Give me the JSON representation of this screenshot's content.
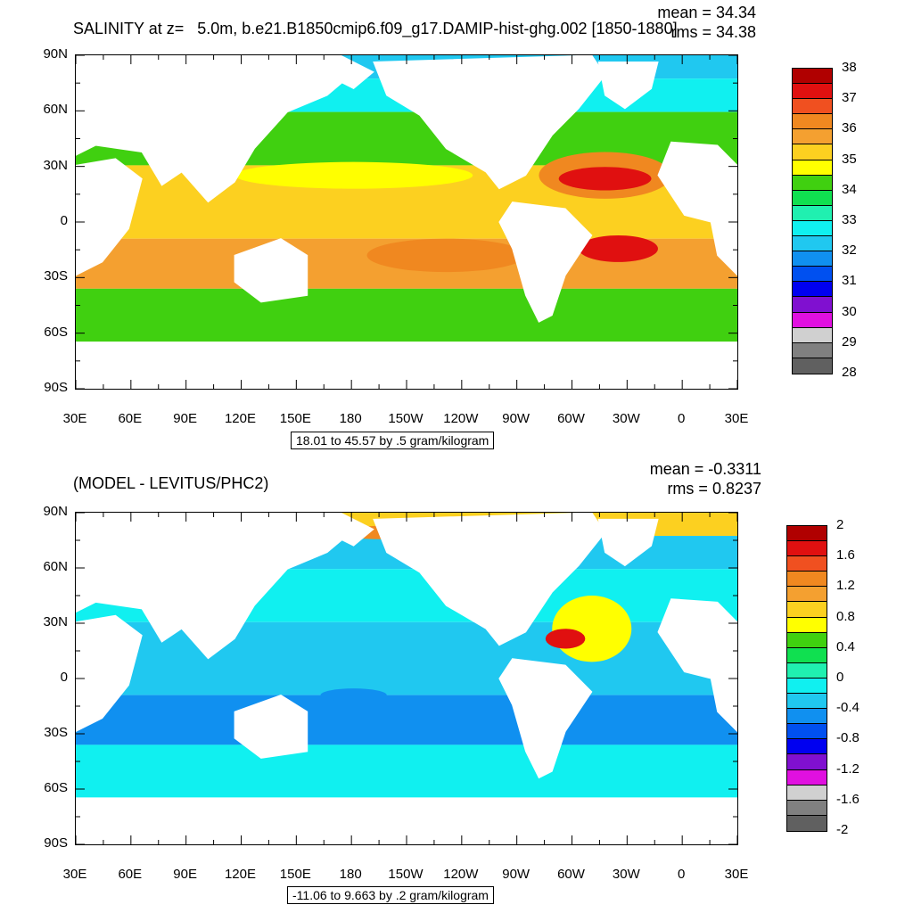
{
  "colors": {
    "white": "#ffffff",
    "land": "#ffffff"
  },
  "panels": [
    {
      "title": "SALINITY at z=   5.0m, b.e21.B1850cmip6.f09_g17.DAMIP-hist-ghg.002 [1850-1880]",
      "mean_text": "mean = 34.34",
      "rms_text": "rms = 34.38",
      "info_text": "18.01 to 45.57 by .5 gram/kilogram",
      "colorbar": {
        "labels": [
          "38",
          "37",
          "36",
          "35",
          "34",
          "33",
          "32",
          "31",
          "30",
          "29",
          "28"
        ],
        "colors": [
          "#b00000",
          "#e01010",
          "#f05020",
          "#f08820",
          "#f4a030",
          "#fcd020",
          "#ffff00",
          "#40d010",
          "#10e050",
          "#20f0b0",
          "#10f0f0",
          "#20c8f0",
          "#1090f0",
          "#0050f0",
          "#0000f0",
          "#8010d0",
          "#e010e0",
          "#d0d0d0",
          "#808080",
          "#606060"
        ]
      },
      "map_fields": [
        {
          "name": "band-arctic",
          "color": "#20c8f0"
        },
        {
          "name": "band-north",
          "color": "#10f0f0"
        },
        {
          "name": "band-npac",
          "color": "#40d010"
        },
        {
          "name": "band-trop",
          "color": "#fcd020"
        },
        {
          "name": "band-south",
          "color": "#f4a030"
        },
        {
          "name": "band-so",
          "color": "#40d010"
        }
      ]
    },
    {
      "title": "(MODEL - LEVITUS/PHC2)",
      "mean_text": "mean = -0.3311",
      "rms_text": "rms = 0.8237",
      "info_text": "-11.06 to 9.663 by .2 gram/kilogram",
      "colorbar": {
        "labels": [
          "2",
          "1.6",
          "1.2",
          "0.8",
          "0.4",
          "0",
          "-0.4",
          "-0.8",
          "-1.2",
          "-1.6",
          "-2"
        ],
        "colors": [
          "#b00000",
          "#e01010",
          "#f05020",
          "#f08820",
          "#f4a030",
          "#fcd020",
          "#ffff00",
          "#40d010",
          "#10e050",
          "#20f0b0",
          "#10f0f0",
          "#20c8f0",
          "#1090f0",
          "#0050f0",
          "#0000f0",
          "#8010d0",
          "#e010e0",
          "#d0d0d0",
          "#808080",
          "#606060"
        ]
      },
      "map_fields": [
        {
          "name": "band-arctic",
          "color": "#fcd020"
        },
        {
          "name": "band-north",
          "color": "#20c8f0"
        },
        {
          "name": "band-npac",
          "color": "#10f0f0"
        },
        {
          "name": "band-trop",
          "color": "#20c8f0"
        },
        {
          "name": "band-south",
          "color": "#1090f0"
        },
        {
          "name": "band-so",
          "color": "#10f0f0"
        }
      ]
    }
  ],
  "axes": {
    "lat_labels": [
      "90N",
      "60N",
      "30N",
      "0",
      "30S",
      "60S",
      "90S"
    ],
    "lon_labels": [
      "30E",
      "60E",
      "90E",
      "120E",
      "150E",
      "180",
      "150W",
      "120W",
      "90W",
      "60W",
      "30W",
      "0",
      "30E"
    ]
  }
}
